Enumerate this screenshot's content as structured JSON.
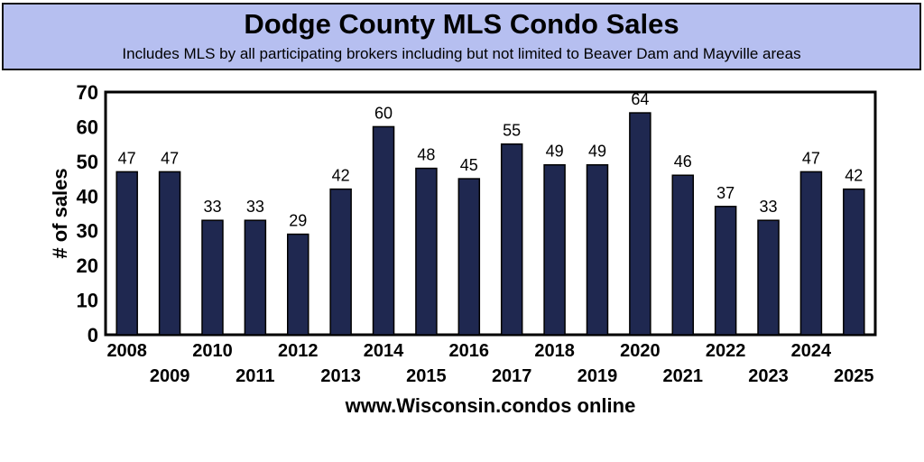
{
  "header": {
    "title": "Dodge County MLS Condo Sales",
    "subtitle": "Includes MLS by all participating brokers including but not limited to Beaver Dam and Mayville areas"
  },
  "footer": "www.Wisconsin.condos online",
  "colors": {
    "bar": "#1f2850",
    "header_bg": "#b6bff0"
  },
  "chart_data": {
    "type": "bar",
    "title": "Dodge County MLS Condo Sales",
    "xlabel": "www.Wisconsin.condos online",
    "ylabel": "# of sales",
    "ylim": [
      0,
      70
    ],
    "yticks": [
      0,
      10,
      20,
      30,
      40,
      50,
      60,
      70
    ],
    "grid": false,
    "categories": [
      "2008",
      "2009",
      "2010",
      "2011",
      "2012",
      "2013",
      "2014",
      "2015",
      "2016",
      "2017",
      "2018",
      "2019",
      "2020",
      "2021",
      "2022",
      "2023",
      "2024",
      "2025"
    ],
    "values": [
      47,
      47,
      33,
      33,
      29,
      42,
      60,
      48,
      45,
      55,
      49,
      49,
      64,
      46,
      37,
      33,
      47,
      42
    ]
  }
}
